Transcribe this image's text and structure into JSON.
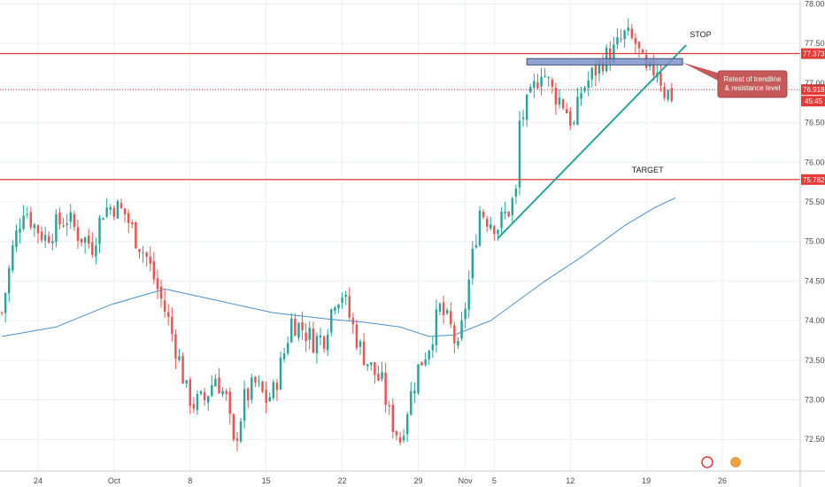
{
  "chart_data": {
    "type": "candlestick",
    "title": "",
    "colors": {
      "up": "#26a69a",
      "down": "#ef5350",
      "ma": "#4a90c8",
      "level": "#e53935",
      "trend": "#26a69a",
      "zone_fill": "#7f93c9",
      "zone_stroke": "#3c4f7c",
      "grid": "#eceff4"
    },
    "y_axis": {
      "ylim": [
        72.1,
        78.05
      ],
      "ticks": [
        "72.500",
        "73.000",
        "73.500",
        "74.000",
        "74.500",
        "75.000",
        "75.500",
        "76.000",
        "76.500",
        "77.000",
        "77.500",
        "78.000"
      ]
    },
    "x_axis": {
      "ticks": [
        {
          "label": "24",
          "bar": 10
        },
        {
          "label": "Oct",
          "bar": 31
        },
        {
          "label": "8",
          "bar": 52
        },
        {
          "label": "15",
          "bar": 73
        },
        {
          "label": "22",
          "bar": 94
        },
        {
          "label": "29",
          "bar": 115
        },
        {
          "label": "Nov",
          "bar": 128
        },
        {
          "label": "5",
          "bar": 136
        },
        {
          "label": "12",
          "bar": 157
        },
        {
          "label": "19",
          "bar": 178
        },
        {
          "label": "26",
          "bar": 199
        }
      ]
    },
    "n_bars": 186,
    "bars_visible": 221,
    "ohlc_anchors": [
      [
        0,
        74.1
      ],
      [
        3,
        74.9
      ],
      [
        6,
        75.45
      ],
      [
        9,
        75.2
      ],
      [
        12,
        75.05
      ],
      [
        15,
        75.2
      ],
      [
        18,
        75.3
      ],
      [
        21,
        75.1
      ],
      [
        25,
        74.95
      ],
      [
        28,
        75.4
      ],
      [
        31,
        75.45
      ],
      [
        34,
        75.35
      ],
      [
        37,
        75.05
      ],
      [
        40,
        74.8
      ],
      [
        43,
        74.4
      ],
      [
        46,
        74.0
      ],
      [
        49,
        73.5
      ],
      [
        51,
        73.1
      ],
      [
        53,
        72.95
      ],
      [
        56,
        73.0
      ],
      [
        59,
        73.3
      ],
      [
        62,
        73.0
      ],
      [
        64,
        72.4
      ],
      [
        67,
        73.0
      ],
      [
        70,
        73.2
      ],
      [
        73,
        73.0
      ],
      [
        75,
        73.1
      ],
      [
        78,
        73.6
      ],
      [
        80,
        74.0
      ],
      [
        83,
        73.9
      ],
      [
        86,
        73.75
      ],
      [
        89,
        73.8
      ],
      [
        92,
        74.3
      ],
      [
        94,
        74.35
      ],
      [
        96,
        74.05
      ],
      [
        99,
        73.65
      ],
      [
        102,
        73.4
      ],
      [
        105,
        73.2
      ],
      [
        107,
        72.8
      ],
      [
        110,
        72.5
      ],
      [
        112,
        72.9
      ],
      [
        115,
        73.4
      ],
      [
        118,
        73.7
      ],
      [
        121,
        74.15
      ],
      [
        124,
        73.9
      ],
      [
        126,
        73.6
      ],
      [
        128,
        74.2
      ],
      [
        130,
        74.8
      ],
      [
        132,
        75.4
      ],
      [
        134,
        75.3
      ],
      [
        137,
        75.2
      ],
      [
        140,
        75.4
      ],
      [
        142,
        75.6
      ],
      [
        143,
        76.5
      ],
      [
        146,
        76.8
      ],
      [
        149,
        77.2
      ],
      [
        152,
        76.9
      ],
      [
        155,
        76.75
      ],
      [
        158,
        76.45
      ],
      [
        160,
        76.9
      ],
      [
        163,
        77.1
      ],
      [
        166,
        77.3
      ],
      [
        169,
        77.4
      ],
      [
        172,
        77.6
      ],
      [
        175,
        77.5
      ],
      [
        178,
        77.1
      ],
      [
        181,
        77.2
      ],
      [
        183,
        76.9
      ],
      [
        185,
        76.85
      ]
    ],
    "series": [
      {
        "name": "",
        "kind": "moving_average",
        "points": [
          [
            0,
            73.8
          ],
          [
            15,
            73.92
          ],
          [
            30,
            74.2
          ],
          [
            45,
            74.4
          ],
          [
            60,
            74.25
          ],
          [
            75,
            74.1
          ],
          [
            90,
            74.02
          ],
          [
            100,
            73.98
          ],
          [
            110,
            73.92
          ],
          [
            118,
            73.8
          ],
          [
            125,
            73.82
          ],
          [
            135,
            74.0
          ],
          [
            150,
            74.5
          ],
          [
            160,
            74.8
          ],
          [
            172,
            75.2
          ],
          [
            180,
            75.42
          ],
          [
            186,
            75.55
          ]
        ]
      }
    ],
    "levels": [
      {
        "price": 77.373,
        "label": "77.373",
        "style": "solid"
      },
      {
        "price": 76.918,
        "label": "76.918",
        "style": "dotted"
      },
      {
        "price": 75.782,
        "label": "75.782",
        "style": "solid"
      }
    ],
    "time_badge": "45:45",
    "trendline": {
      "from": [
        137,
        75.04
      ],
      "to": [
        189,
        77.48
      ]
    },
    "resistance_zone": {
      "bar_from": 145,
      "bar_to": 188,
      "price_top": 77.31,
      "price_bottom": 77.23
    },
    "annotations": [
      {
        "text": "STOP",
        "bar": 190,
        "price": 77.58
      },
      {
        "text": "TARGET",
        "bar": 174,
        "price": 75.87
      }
    ],
    "callout": {
      "lines": [
        "Retest of trendline",
        "& resistance level"
      ],
      "anchor": {
        "bar": 188,
        "price": 77.26
      }
    },
    "grid": true
  }
}
